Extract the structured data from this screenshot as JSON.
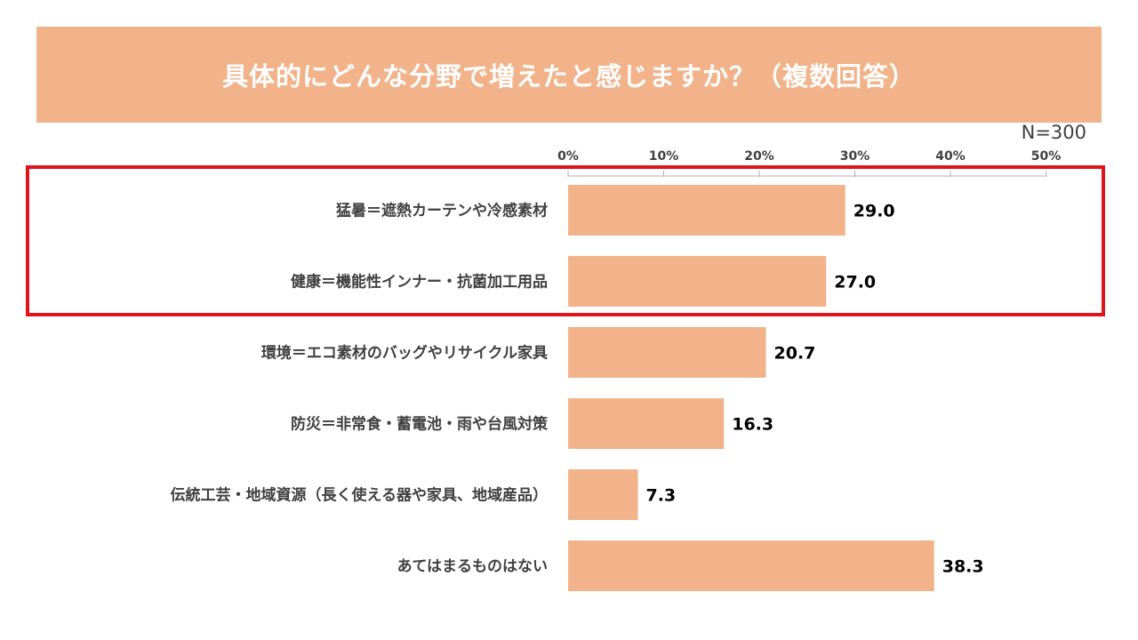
{
  "chart_data": {
    "type": "bar",
    "orientation": "horizontal",
    "title": "具体的にどんな分野で増えたと感じますか？（複数回答）",
    "sample_size": "N=300",
    "categories": [
      "猛暑＝遮熱カーテンや冷感素材",
      "健康＝機能性インナー・抗菌加工用品",
      "環境＝エコ素材のバッグやリサイクル家具",
      "防災＝非常食・蓄電池・雨や台風対策",
      "伝統工芸・地域資源（長く使える器や家具、地域産品）",
      "あてはまるものはない"
    ],
    "values": [
      29.0,
      27.0,
      20.7,
      16.3,
      7.3,
      38.3
    ],
    "value_labels": [
      "29.0",
      "27.0",
      "20.7",
      "16.3",
      "7.3",
      "38.3"
    ],
    "x_ticks": [
      "0%",
      "10%",
      "20%",
      "30%",
      "40%",
      "50%"
    ],
    "xlim": [
      0,
      50
    ],
    "highlighted_categories": [
      0,
      1
    ],
    "grid": false,
    "legend": "none"
  },
  "colors": {
    "banner": "#F2B38A",
    "bar": "#F2B38A",
    "highlight_border": "#E0141B",
    "axis": "#B0B0B0",
    "label_text": "#404040",
    "value_text": "#000000"
  }
}
